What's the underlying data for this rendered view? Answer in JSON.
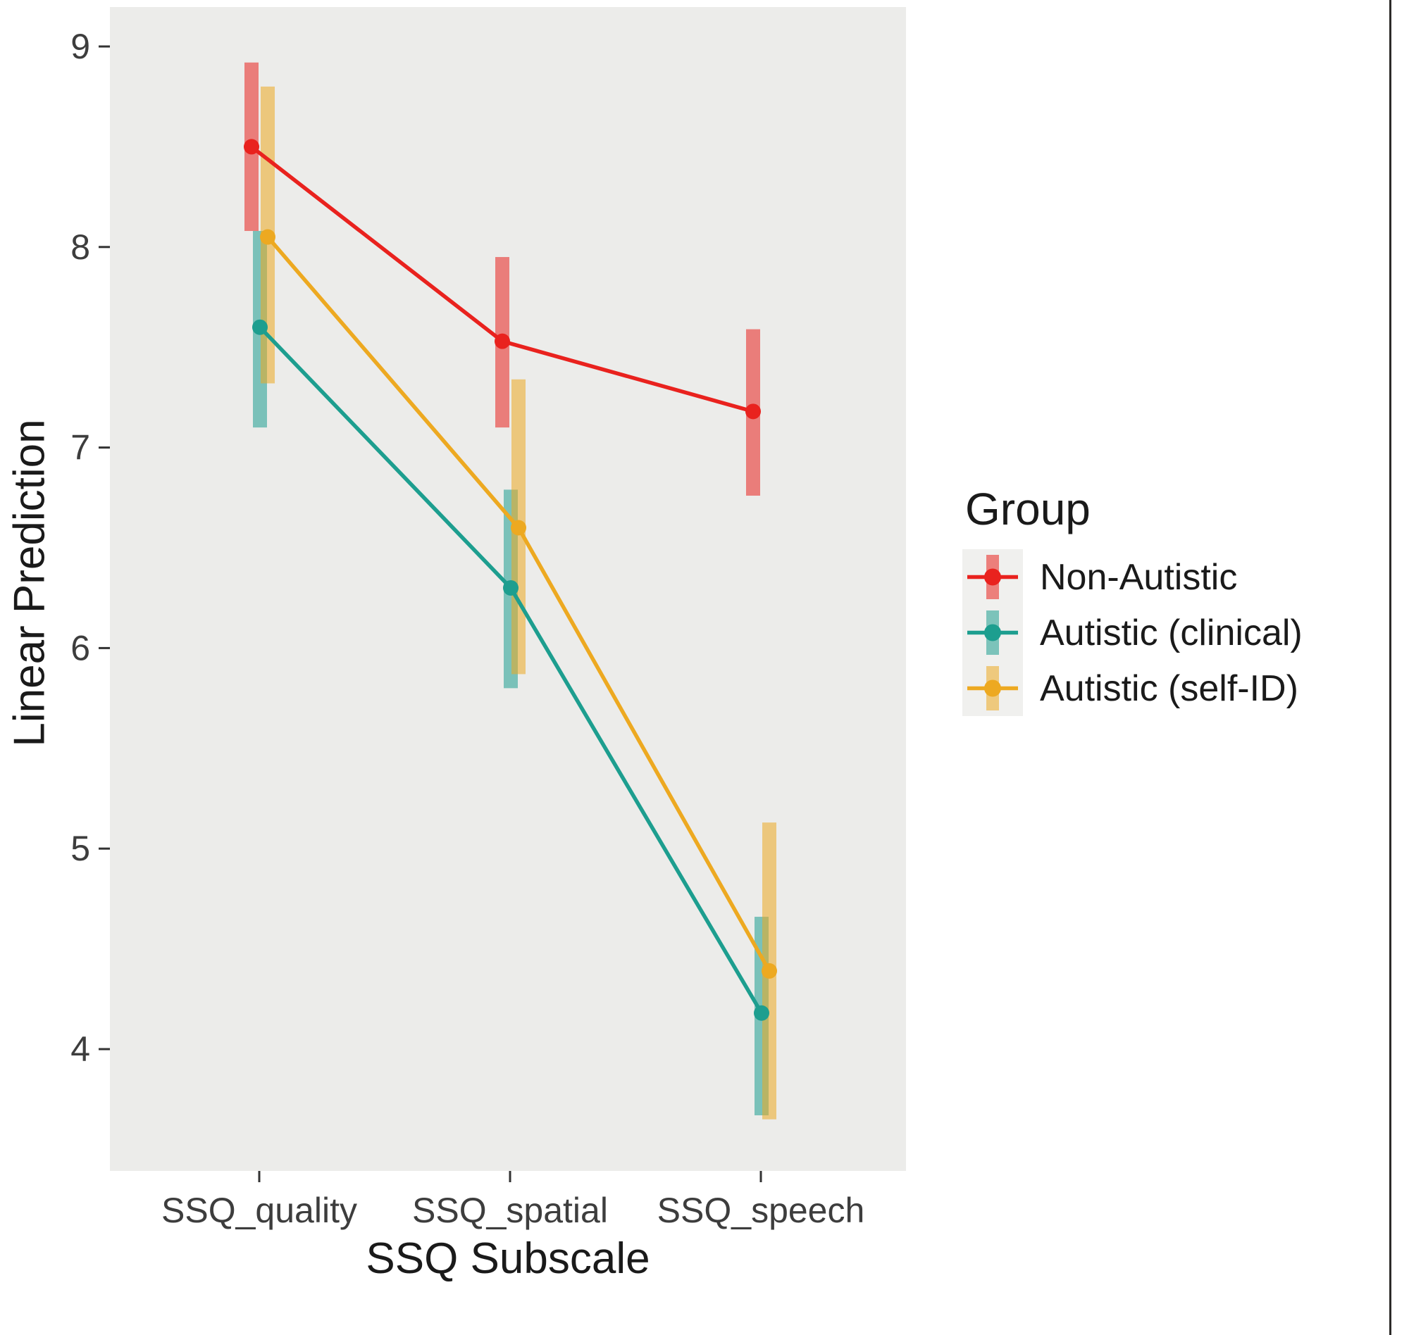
{
  "chart_data": {
    "type": "pointrange-line",
    "title": "",
    "xlabel": "SSQ Subscale",
    "ylabel": "Linear Prediction",
    "legend_title": "Group",
    "legend_position": "right",
    "grid": false,
    "categories": [
      "SSQ_quality",
      "SSQ_spatial",
      "SSQ_speech"
    ],
    "yticks": [
      9,
      8,
      7,
      6,
      5,
      4
    ],
    "ylim": [
      3.39,
      9.2
    ],
    "series": [
      {
        "name": "Non-Autistic",
        "color": "#e9221e",
        "point_values": [
          8.5,
          7.53,
          7.18
        ],
        "ci_lower": [
          8.08,
          7.1,
          6.76
        ],
        "ci_upper": [
          8.92,
          7.95,
          7.59
        ]
      },
      {
        "name": "Autistic (clinical)",
        "color": "#1d9e8f",
        "point_values": [
          7.6,
          6.3,
          4.18
        ],
        "ci_lower": [
          7.1,
          5.8,
          3.67
        ],
        "ci_upper": [
          8.08,
          6.79,
          4.66
        ]
      },
      {
        "name": "Autistic (self-ID)",
        "color": "#eda921",
        "point_values": [
          8.05,
          6.6,
          4.39
        ],
        "ci_lower": [
          7.32,
          5.87,
          3.65
        ],
        "ci_upper": [
          8.8,
          7.34,
          5.13
        ]
      }
    ],
    "colors": {
      "panel_bg": "#ececea",
      "legend_key_bg": "#f0f0ee",
      "axis_text": "#3d3d3d",
      "title_text": "#1a1a1a",
      "tick_mark": "#333333",
      "bar_opacity": 0.55
    }
  }
}
